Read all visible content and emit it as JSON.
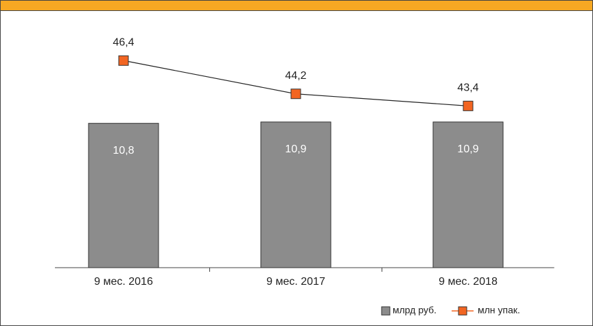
{
  "chart_data": {
    "type": "combo",
    "categories": [
      "9 мес. 2016",
      "9 мес. 2017",
      "9 мес. 2018"
    ],
    "series": [
      {
        "name": "млрд руб.",
        "type": "bar",
        "color": "#8c8c8c",
        "values": [
          10.8,
          10.9,
          10.9
        ],
        "value_labels": [
          "10,8",
          "10,9",
          "10,9"
        ]
      },
      {
        "name": "млн упак.",
        "type": "line",
        "axis": "y2",
        "color": "#f26522",
        "values": [
          46.4,
          44.2,
          43.4
        ],
        "value_labels": [
          "46,4",
          "44,2",
          "43,4"
        ]
      }
    ],
    "ylim": [
      0,
      19
    ],
    "y2lim": [
      32.7,
      49.5
    ],
    "legend": "bottom-right"
  }
}
